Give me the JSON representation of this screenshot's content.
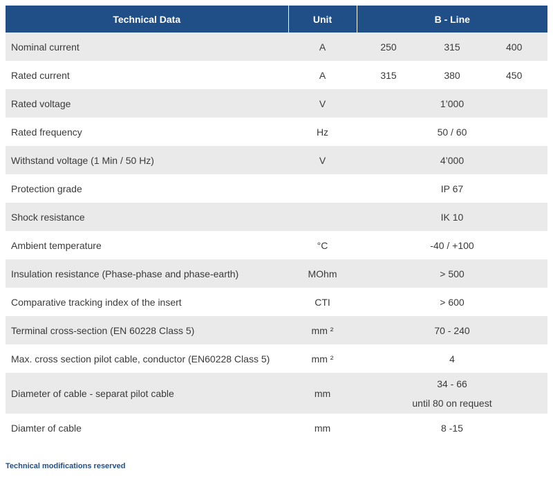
{
  "header": {
    "technical_data": "Technical Data",
    "unit": "Unit",
    "line": "B - Line"
  },
  "rows": [
    {
      "param": "Nominal current",
      "unit": "A",
      "values": [
        "250",
        "315",
        "400"
      ]
    },
    {
      "param": "Rated current",
      "unit": "A",
      "values": [
        "315",
        "380",
        "450"
      ]
    },
    {
      "param": "Rated voltage",
      "unit": "V",
      "value": "1’000"
    },
    {
      "param": "Rated frequency",
      "unit": "Hz",
      "value": "50 / 60"
    },
    {
      "param": "Withstand voltage (1 Min / 50 Hz)",
      "unit": "V",
      "value": "4’000"
    },
    {
      "param": "Protection grade",
      "unit": "",
      "value": "IP 67"
    },
    {
      "param": "Shock resistance",
      "unit": "",
      "value": "IK 10"
    },
    {
      "param": "Ambient temperature",
      "unit": "°C",
      "value": "-40 / +100"
    },
    {
      "param": "Insulation resistance (Phase-phase and phase-earth)",
      "unit": "MOhm",
      "value": "> 500"
    },
    {
      "param": "Comparative tracking index of the insert",
      "unit": "CTI",
      "value": "> 600"
    },
    {
      "param": "Terminal cross-section (EN 60228 Class 5)",
      "unit": "mm ²",
      "value": "70 - 240"
    },
    {
      "param": "Max. cross section pilot cable, conductor (EN60228 Class 5)",
      "unit": "mm ²",
      "value": "4"
    },
    {
      "param": "Diameter of cable - separat pilot cable",
      "unit": "mm",
      "value_line1": "34 - 66",
      "value_line2": "until 80 on request"
    },
    {
      "param": "Diamter of cable",
      "unit": "mm",
      "value": "8 -15"
    }
  ],
  "footnote": "Technical modifications reserved"
}
